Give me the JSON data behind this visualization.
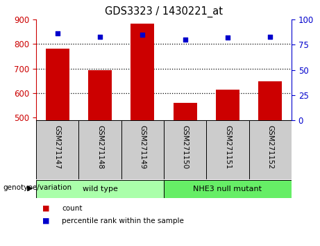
{
  "title": "GDS3323 / 1430221_at",
  "samples": [
    "GSM271147",
    "GSM271148",
    "GSM271149",
    "GSM271150",
    "GSM271151",
    "GSM271152"
  ],
  "bar_values": [
    780,
    695,
    882,
    560,
    615,
    648
  ],
  "percentile_values": [
    86,
    83,
    85,
    80,
    82,
    83
  ],
  "bar_bottom": 490,
  "ylim_left": [
    490,
    900
  ],
  "ylim_right": [
    0,
    100
  ],
  "yticks_left": [
    500,
    600,
    700,
    800,
    900
  ],
  "yticks_right": [
    0,
    25,
    50,
    75,
    100
  ],
  "hgrid_lines": [
    600,
    700,
    800
  ],
  "bar_color": "#CC0000",
  "dot_color": "#0000CC",
  "groups": [
    {
      "label": "wild type",
      "indices": [
        0,
        1,
        2
      ],
      "color": "#AAFFAA"
    },
    {
      "label": "NHE3 null mutant",
      "indices": [
        3,
        4,
        5
      ],
      "color": "#66EE66"
    }
  ],
  "group_label": "genotype/variation",
  "legend_items": [
    {
      "label": "count",
      "color": "#CC0000"
    },
    {
      "label": "percentile rank within the sample",
      "color": "#0000CC"
    }
  ],
  "tick_label_color_left": "#CC0000",
  "tick_label_color_right": "#0000CC",
  "label_cell_color": "#CCCCCC",
  "bar_width": 0.55,
  "fig_width": 4.61,
  "fig_height": 3.54,
  "dpi": 100
}
